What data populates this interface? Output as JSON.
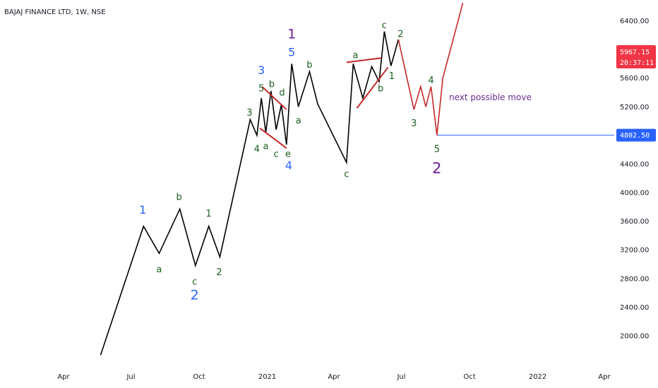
{
  "header": {
    "title": "BAJAJ FINANCE LTD, 1W, NSE"
  },
  "price_badges": {
    "last_price": "5967.15",
    "countdown": "20:37:11",
    "level": "4802.50"
  },
  "annotation": "next possible move",
  "colors": {
    "background": "#ffffff",
    "price_line": "#000000",
    "projection": "#c62828",
    "wave_label_green": "#1b5e20",
    "wave_label_blue": "#2962ff",
    "wave_label_purple": "#6a1b9a",
    "level_line": "#2962ff",
    "last_price_badge": "#f23645",
    "level_badge": "#2962ff"
  },
  "chart_data": {
    "type": "line",
    "title": "BAJAJ FINANCE LTD, 1W, NSE",
    "ylim": [
      1700,
      6700
    ],
    "y_ticks": [
      "6400.00",
      "5600.00",
      "5200.00",
      "4800.00",
      "4400.00",
      "4000.00",
      "3600.00",
      "3200.00",
      "2800.00",
      "2400.00",
      "2000.00"
    ],
    "x_ticks": [
      "Apr",
      "Jul",
      "Oct",
      "2021",
      "Apr",
      "Jul",
      "Oct",
      "2022",
      "Apr"
    ],
    "x_tick_dates": [
      "2020-04-01",
      "2020-07-01",
      "2020-10-01",
      "2021-01-01",
      "2021-04-01",
      "2021-07-01",
      "2021-10-01",
      "2022-01-01",
      "2022-04-01"
    ],
    "series": [
      {
        "type": "price",
        "x": [
          "2020-05-21",
          "2020-07-18",
          "2020-08-08",
          "2020-09-05",
          "2020-09-26",
          "2020-10-14",
          "2020-10-29",
          "2020-12-09",
          "2020-12-18",
          "2020-12-24",
          "2020-12-30",
          "2021-01-06",
          "2021-01-13",
          "2021-01-20",
          "2021-01-27",
          "2021-02-03",
          "2021-02-12",
          "2021-02-27",
          "2021-03-10",
          "2021-04-18",
          "2021-04-27",
          "2021-05-10",
          "2021-05-22",
          "2021-06-01",
          "2021-06-08",
          "2021-06-17",
          "2021-06-27"
        ],
        "y": [
          1730,
          3530,
          3150,
          3770,
          2980,
          3530,
          3100,
          5020,
          4800,
          5320,
          4840,
          5420,
          4880,
          5230,
          4670,
          5800,
          5200,
          5690,
          5240,
          4420,
          5800,
          5320,
          5760,
          5550,
          6250,
          5770,
          6140
        ]
      },
      {
        "type": "projection",
        "x": [
          "2021-06-27",
          "2021-07-18",
          "2021-07-27",
          "2021-08-03",
          "2021-08-10",
          "2021-08-18",
          "2021-08-26",
          "2021-09-22"
        ],
        "y": [
          6140,
          5160,
          5480,
          5200,
          5480,
          4802.5,
          5600,
          6650
        ]
      },
      {
        "type": "triangle-1",
        "lines": [
          {
            "x": [
              "2020-12-25",
              "2021-01-27"
            ],
            "y": [
              5480,
              5160
            ]
          },
          {
            "x": [
              "2020-12-22",
              "2021-01-27"
            ],
            "y": [
              4900,
              4620
            ]
          }
        ]
      },
      {
        "type": "triangle-2",
        "lines": [
          {
            "x": [
              "2021-04-18",
              "2021-06-04"
            ],
            "y": [
              5820,
              5880
            ]
          },
          {
            "x": [
              "2021-05-02",
              "2021-06-13"
            ],
            "y": [
              5180,
              5750
            ]
          }
        ]
      }
    ],
    "wave_labels": [
      {
        "text": "1",
        "x": "2020-07-17",
        "y": 3750,
        "size": 16,
        "color": "blue"
      },
      {
        "text": "a",
        "x": "2020-08-08",
        "y": 2920,
        "size": 13,
        "color": "green"
      },
      {
        "text": "b",
        "x": "2020-09-04",
        "y": 3930,
        "size": 13,
        "color": "green"
      },
      {
        "text": "c",
        "x": "2020-09-25",
        "y": 2750,
        "size": 13,
        "color": "green"
      },
      {
        "text": "2",
        "x": "2020-09-25",
        "y": 2560,
        "size": 19,
        "color": "blue"
      },
      {
        "text": "1",
        "x": "2020-10-14",
        "y": 3700,
        "size": 13,
        "color": "green"
      },
      {
        "text": "2",
        "x": "2020-10-28",
        "y": 2880,
        "size": 13,
        "color": "green"
      },
      {
        "text": "3",
        "x": "2020-12-08",
        "y": 5110,
        "size": 13,
        "color": "green"
      },
      {
        "text": "4",
        "x": "2020-12-18",
        "y": 4600,
        "size": 13,
        "color": "green"
      },
      {
        "text": "3",
        "x": "2020-12-24",
        "y": 5700,
        "size": 16,
        "color": "blue"
      },
      {
        "text": "5",
        "x": "2020-12-24",
        "y": 5450,
        "size": 13,
        "color": "green"
      },
      {
        "text": "a",
        "x": "2020-12-30",
        "y": 4640,
        "size": 13,
        "color": "green"
      },
      {
        "text": "b",
        "x": "2021-01-07",
        "y": 5510,
        "size": 13,
        "color": "green"
      },
      {
        "text": "c",
        "x": "2021-01-13",
        "y": 4530,
        "size": 13,
        "color": "green"
      },
      {
        "text": "d",
        "x": "2021-01-21",
        "y": 5390,
        "size": 13,
        "color": "green"
      },
      {
        "text": "e",
        "x": "2021-01-29",
        "y": 4530,
        "size": 13,
        "color": "green"
      },
      {
        "text": "4",
        "x": "2021-01-30",
        "y": 4370,
        "size": 16,
        "color": "blue"
      },
      {
        "text": "1",
        "x": "2021-02-03",
        "y": 6210,
        "size": 19,
        "color": "purple"
      },
      {
        "text": "5",
        "x": "2021-02-03",
        "y": 5950,
        "size": 16,
        "color": "blue"
      },
      {
        "text": "a",
        "x": "2021-02-12",
        "y": 5000,
        "size": 13,
        "color": "green"
      },
      {
        "text": "b",
        "x": "2021-02-27",
        "y": 5780,
        "size": 13,
        "color": "green"
      },
      {
        "text": "c",
        "x": "2021-04-18",
        "y": 4250,
        "size": 13,
        "color": "green"
      },
      {
        "text": "a",
        "x": "2021-04-30",
        "y": 5910,
        "size": 13,
        "color": "green"
      },
      {
        "text": "b",
        "x": "2021-06-03",
        "y": 5450,
        "size": 13,
        "color": "green"
      },
      {
        "text": "c",
        "x": "2021-06-08",
        "y": 6330,
        "size": 13,
        "color": "green"
      },
      {
        "text": "1",
        "x": "2021-06-18",
        "y": 5620,
        "size": 13,
        "color": "green"
      },
      {
        "text": "2",
        "x": "2021-06-30",
        "y": 6210,
        "size": 13,
        "color": "green"
      },
      {
        "text": "3",
        "x": "2021-07-18",
        "y": 4960,
        "size": 13,
        "color": "green"
      },
      {
        "text": "4",
        "x": "2021-08-10",
        "y": 5560,
        "size": 13,
        "color": "green"
      },
      {
        "text": "5",
        "x": "2021-08-18",
        "y": 4600,
        "size": 13,
        "color": "green"
      },
      {
        "text": "2",
        "x": "2021-08-18",
        "y": 4330,
        "size": 21,
        "color": "purple"
      }
    ],
    "horizontal_line": {
      "y": 4802.5,
      "x_start": "2021-08-18"
    },
    "grid": false,
    "legend": "none"
  }
}
